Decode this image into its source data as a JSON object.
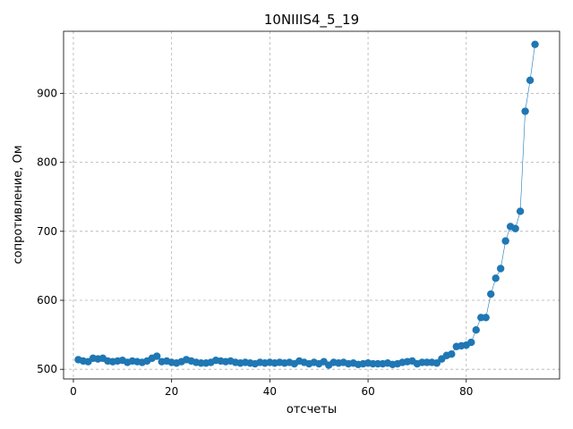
{
  "chart_data": {
    "type": "line",
    "title": "10NIIIS4_5_19",
    "xlabel": "отсчеты",
    "ylabel": "сопротивление, Ом",
    "xlim": [
      -2,
      99
    ],
    "ylim": [
      486,
      990
    ],
    "xticks": [
      0,
      20,
      40,
      60,
      80
    ],
    "yticks": [
      500,
      600,
      700,
      800,
      900
    ],
    "grid": true,
    "color": "#1f77b4",
    "x": [
      1,
      2,
      3,
      4,
      5,
      6,
      7,
      8,
      9,
      10,
      11,
      12,
      13,
      14,
      15,
      16,
      17,
      18,
      19,
      20,
      21,
      22,
      23,
      24,
      25,
      26,
      27,
      28,
      29,
      30,
      31,
      32,
      33,
      34,
      35,
      36,
      37,
      38,
      39,
      40,
      41,
      42,
      43,
      44,
      45,
      46,
      47,
      48,
      49,
      50,
      51,
      52,
      53,
      54,
      55,
      56,
      57,
      58,
      59,
      60,
      61,
      62,
      63,
      64,
      65,
      66,
      67,
      68,
      69,
      70,
      71,
      72,
      73,
      74,
      75,
      76,
      77,
      78,
      79,
      80,
      81,
      82,
      83,
      84,
      85,
      86,
      87,
      88,
      89,
      90,
      91,
      92,
      93,
      94
    ],
    "y": [
      514,
      512,
      511,
      516,
      515,
      516,
      512,
      511,
      512,
      513,
      510,
      512,
      511,
      510,
      512,
      516,
      519,
      511,
      512,
      510,
      509,
      511,
      514,
      512,
      510,
      509,
      509,
      510,
      513,
      512,
      511,
      512,
      510,
      509,
      510,
      509,
      508,
      510,
      509,
      510,
      509,
      510,
      509,
      510,
      508,
      512,
      510,
      508,
      510,
      508,
      511,
      506,
      510,
      509,
      510,
      508,
      509,
      507,
      508,
      509,
      508,
      508,
      508,
      509,
      507,
      508,
      510,
      511,
      512,
      508,
      510,
      510,
      510,
      509,
      515,
      520,
      522,
      533,
      534,
      535,
      539,
      557,
      575,
      575,
      609,
      632,
      646,
      686,
      707,
      704,
      729,
      874,
      919,
      971
    ]
  }
}
